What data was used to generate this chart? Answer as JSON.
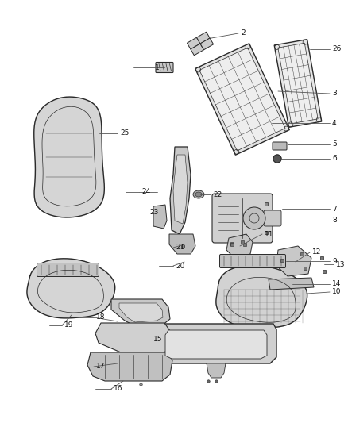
{
  "background_color": "#ffffff",
  "line_color": "#2a2a2a",
  "fig_width": 4.38,
  "fig_height": 5.33,
  "dpi": 100
}
